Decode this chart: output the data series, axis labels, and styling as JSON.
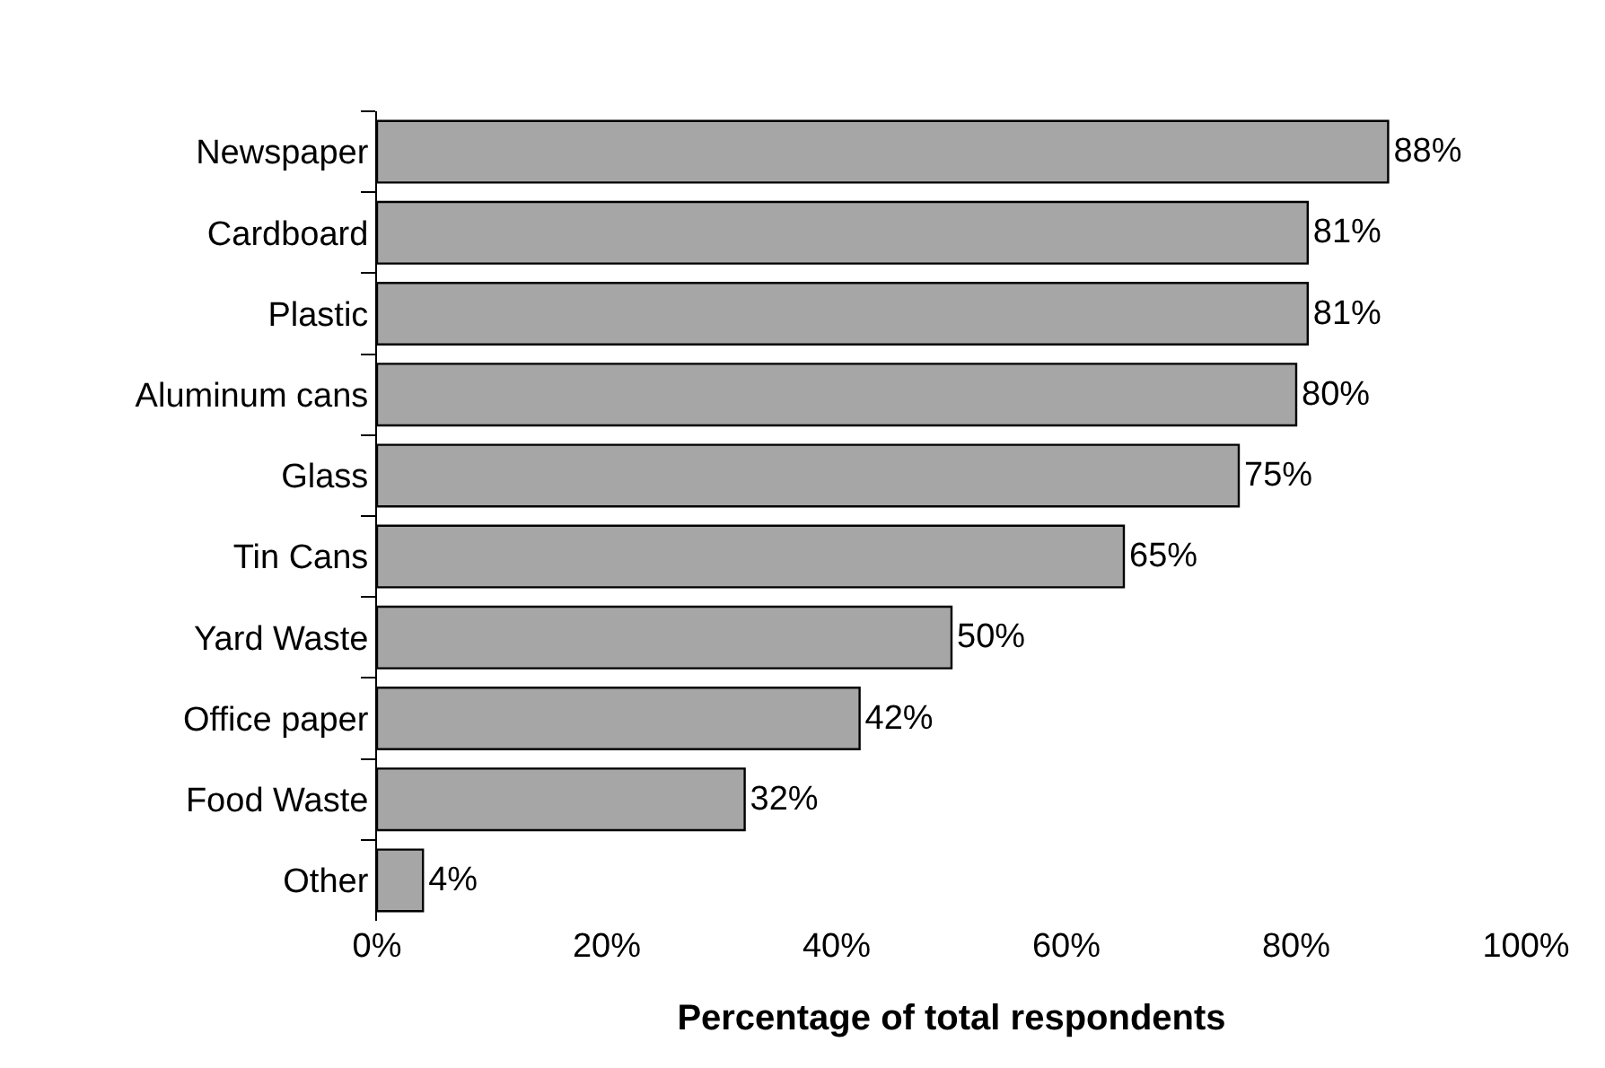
{
  "chart_data": {
    "type": "bar",
    "orientation": "horizontal",
    "xlabel": "Percentage of total respondents",
    "categories": [
      "Newspaper",
      "Cardboard",
      "Plastic",
      "Aluminum cans",
      "Glass",
      "Tin Cans",
      "Yard Waste",
      "Office paper",
      "Food Waste",
      "Other"
    ],
    "values": [
      88,
      81,
      81,
      80,
      75,
      65,
      50,
      42,
      32,
      4
    ],
    "value_labels": [
      "88%",
      "81%",
      "81%",
      "80%",
      "75%",
      "65%",
      "50%",
      "42%",
      "32%",
      "4%"
    ],
    "color": "#a6a6a6",
    "xlim": [
      0,
      100
    ],
    "xticks": [
      {
        "value": 0,
        "label": "0%"
      },
      {
        "value": 20,
        "label": "20%"
      },
      {
        "value": 40,
        "label": "40%"
      },
      {
        "value": 60,
        "label": "60%"
      },
      {
        "value": 80,
        "label": "80%"
      },
      {
        "value": 100,
        "label": "100%"
      }
    ],
    "legend": false
  }
}
